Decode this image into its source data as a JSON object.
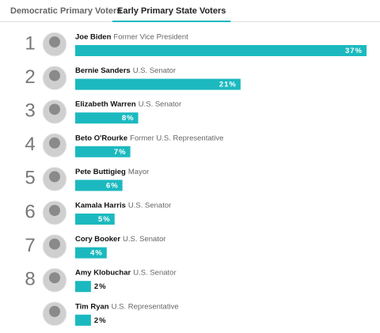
{
  "tabs": [
    "Democratic Primary Voters",
    "Early Primary State Voters"
  ],
  "active_tab": 1,
  "chart_data": {
    "type": "bar",
    "ranks": [
      1,
      2,
      3,
      4,
      5,
      6,
      7,
      8,
      null
    ],
    "categories": [
      "Joe Biden",
      "Bernie Sanders",
      "Elizabeth Warren",
      "Beto O'Rourke",
      "Pete Buttigieg",
      "Kamala Harris",
      "Cory Booker",
      "Amy Klobuchar",
      "Tim Ryan"
    ],
    "descriptions": [
      "Former Vice President",
      "U.S. Senator",
      "U.S. Senator",
      "Former U.S. Representative",
      "Mayor",
      "U.S. Senator",
      "U.S. Senator",
      "U.S. Senator",
      "U.S. Representative"
    ],
    "values": [
      37,
      21,
      8,
      7,
      6,
      5,
      4,
      2,
      2
    ],
    "value_labels": [
      "37%",
      "21%",
      "8%",
      "7%",
      "6%",
      "5%",
      "4%",
      "2%",
      "2%"
    ],
    "color": "#1bb9bf"
  }
}
